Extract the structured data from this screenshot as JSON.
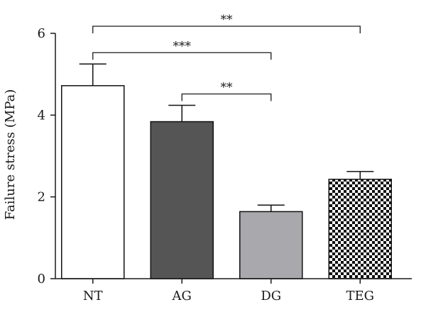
{
  "chart_data": {
    "type": "bar",
    "title": "",
    "xlabel": "",
    "ylabel": "Failure stress (MPa)",
    "ylim": [
      0,
      6
    ],
    "yticks": [
      0,
      2,
      4,
      6
    ],
    "grid": false,
    "categories": [
      "NT",
      "AG",
      "DG",
      "TEG"
    ],
    "values": [
      4.72,
      3.84,
      1.64,
      2.43
    ],
    "errors": [
      0.53,
      0.4,
      0.16,
      0.19
    ],
    "bar_fills": [
      "white",
      "#555555",
      "#a9a9ad",
      "checker"
    ],
    "significance": [
      {
        "from": "NT",
        "to": "DG",
        "label": "***"
      },
      {
        "from": "AG",
        "to": "DG",
        "label": "**"
      },
      {
        "from": "NT",
        "to": "TEG",
        "label": "**"
      }
    ]
  }
}
